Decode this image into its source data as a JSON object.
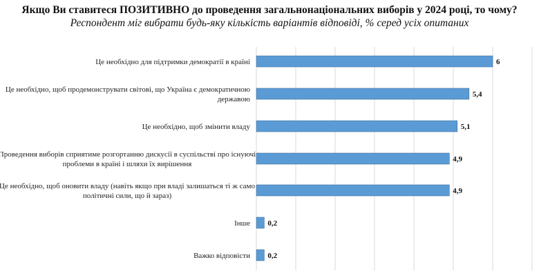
{
  "header": {
    "title": "Якщо Ви ставитеся ПОЗИТИВНО до проведення загальнонаціональних виборів у 2024 році, то чому?",
    "subtitle": "Респондент міг вибрати будь-яку кількість варіантів відповіді, % серед усіх опитаних"
  },
  "chart_data": {
    "type": "bar",
    "orientation": "horizontal",
    "categories": [
      [
        "Це необхідно для підтримки демократії в країні"
      ],
      [
        "Це необхідно, щоб продемонструвати світові, що Україна є демократичною",
        "державою"
      ],
      [
        "Це необхідно, щоб змінити владу"
      ],
      [
        "Проведення виборів сприятиме розгортанню дискусії в суспільстві про існуючі",
        "проблеми в країні і шляхи їх вирішення"
      ],
      [
        "Це необхідно, щоб оновити владу (навіть якщо  при владі залишаться ті ж само",
        "політичні сили, що й зараз)"
      ],
      [
        "Інше"
      ],
      [
        "Важко відповісти"
      ]
    ],
    "values": [
      6,
      5.4,
      5.1,
      4.9,
      4.9,
      0.2,
      0.2
    ],
    "value_labels": [
      "6",
      "5,4",
      "5,1",
      "4,9",
      "4,9",
      "0,2",
      "0,2"
    ],
    "xlim": [
      0,
      7
    ],
    "grid": true,
    "bar_color": "#5b9bd5",
    "grid_color": "#d9d9d9"
  }
}
